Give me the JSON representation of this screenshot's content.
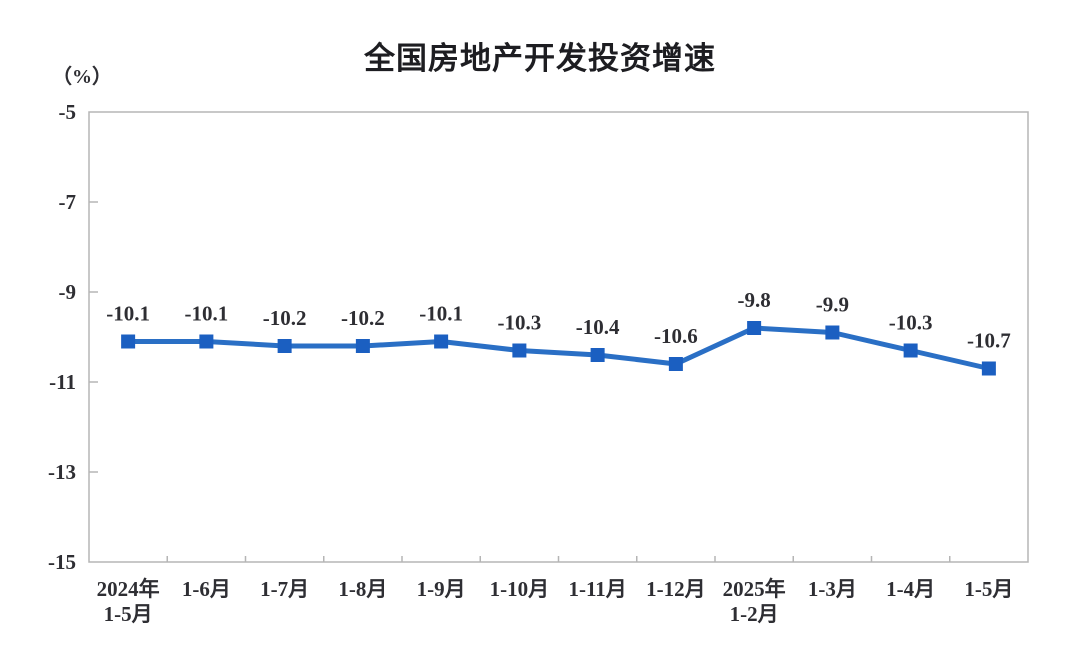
{
  "chart_data": {
    "type": "line",
    "title": "全国房地产开发投资增速",
    "unit_label": "（%）",
    "categories": [
      "2024年\n1-5月",
      "1-6月",
      "1-7月",
      "1-8月",
      "1-9月",
      "1-10月",
      "1-11月",
      "1-12月",
      "2025年\n1-2月",
      "1-3月",
      "1-4月",
      "1-5月"
    ],
    "values": [
      -10.1,
      -10.1,
      -10.2,
      -10.2,
      -10.1,
      -10.3,
      -10.4,
      -10.6,
      -9.8,
      -9.9,
      -10.3,
      -10.7
    ],
    "data_labels": [
      "-10.1",
      "-10.1",
      "-10.2",
      "-10.2",
      "-10.1",
      "-10.3",
      "-10.4",
      "-10.6",
      "-9.8",
      "-9.9",
      "-10.3",
      "-10.7"
    ],
    "ylim": [
      -15,
      -5
    ],
    "yticks": [
      -5,
      -7,
      -9,
      -11,
      -13,
      -15
    ],
    "grid": false,
    "legend": "none",
    "colors": {
      "line": "#2a6fc5",
      "marker": "#1b5fc1",
      "axis": "#b5b5b5",
      "text": "#2e2e33",
      "title": "#1d1d21"
    }
  }
}
